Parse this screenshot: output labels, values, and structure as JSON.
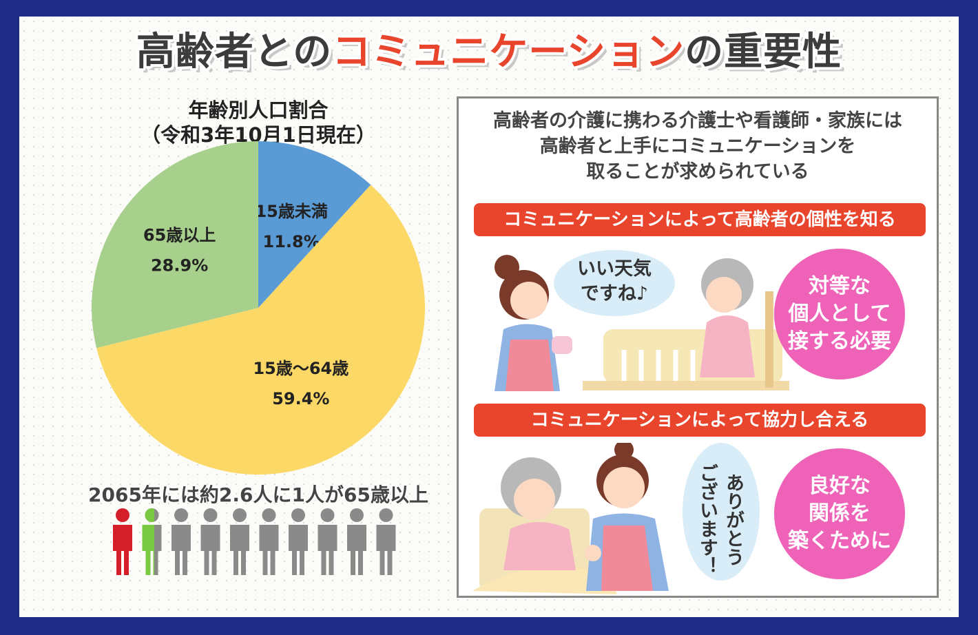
{
  "title": {
    "part1": "高齢者との",
    "part2": "コミュニケーション",
    "part3": "の重要性"
  },
  "chart_data": {
    "type": "pie",
    "title_line1": "年齢別人口割合",
    "title_line2": "（令和3年10月1日現在）",
    "slices": [
      {
        "name": "15歳未満",
        "value": 11.8,
        "label": "11.8%",
        "color": "#5b9bd5"
      },
      {
        "name": "15歳～64歳",
        "value": 59.4,
        "label": "59.4%",
        "color": "#fcd966"
      },
      {
        "name": "65歳以上",
        "value": 28.9,
        "label": "28.9%",
        "color": "#a8d08d"
      }
    ]
  },
  "footnote": "2065年には約2.6人に1人が65歳以上",
  "people": {
    "count": 10,
    "highlight_value": 1,
    "highlight_partial_value": 1.6,
    "red": "#d41f2a",
    "green": "#7ac943",
    "gray": "#8a8a8a"
  },
  "panel": {
    "intro": [
      "高齢者の介護に携わる介護士や看護師・家族には",
      "高齢者と上手にコミュニケーションを",
      "取ることが求められている"
    ],
    "section1": {
      "banner": "コミュニケーションによって高齢者の個性を知る",
      "bubble": [
        "いい天気",
        "ですね♪"
      ],
      "circle": [
        "対等な",
        "個人として",
        "接する必要"
      ]
    },
    "section2": {
      "banner": "コミュニケーションによって協力し合える",
      "bubble": [
        "ありがとう",
        "ございます！"
      ],
      "circle": [
        "良好な",
        "関係を",
        "築くために"
      ]
    }
  }
}
